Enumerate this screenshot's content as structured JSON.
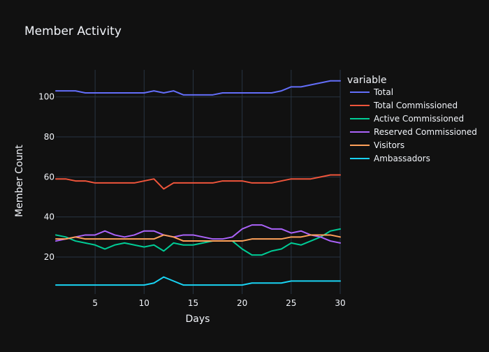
{
  "chart_data": {
    "type": "line",
    "title": "Member Activity",
    "xlabel": "Days",
    "ylabel": "Member Count",
    "legend_title": "variable",
    "legend_position": "top-right",
    "grid": true,
    "xlim": [
      1,
      30
    ],
    "ylim": [
      1.5,
      113.5
    ],
    "x_ticks": [
      5,
      10,
      15,
      20,
      25,
      30
    ],
    "y_ticks": [
      20,
      40,
      60,
      80,
      100
    ],
    "x": [
      1,
      2,
      3,
      4,
      5,
      6,
      7,
      8,
      9,
      10,
      11,
      12,
      13,
      14,
      15,
      16,
      17,
      18,
      19,
      20,
      21,
      22,
      23,
      24,
      25,
      26,
      27,
      28,
      29,
      30
    ],
    "series": [
      {
        "name": "Total",
        "color": "#636efa",
        "values": [
          103,
          103,
          103,
          102,
          102,
          102,
          102,
          102,
          102,
          102,
          103,
          102,
          103,
          101,
          101,
          101,
          101,
          102,
          102,
          102,
          102,
          102,
          102,
          103,
          105,
          105,
          106,
          107,
          108,
          108
        ]
      },
      {
        "name": "Total Commissioned",
        "color": "#ef553b",
        "values": [
          59,
          59,
          58,
          58,
          57,
          57,
          57,
          57,
          57,
          58,
          59,
          54,
          57,
          57,
          57,
          57,
          57,
          58,
          58,
          58,
          57,
          57,
          57,
          58,
          59,
          59,
          59,
          60,
          61,
          61
        ]
      },
      {
        "name": "Active Commissioned",
        "color": "#00cc96",
        "values": [
          31,
          30,
          28,
          27,
          26,
          24,
          26,
          27,
          26,
          25,
          26,
          23,
          27,
          26,
          26,
          27,
          28,
          28,
          28,
          24,
          21,
          21,
          23,
          24,
          27,
          26,
          28,
          30,
          33,
          34
        ]
      },
      {
        "name": "Reserved Commissioned",
        "color": "#ab63fa",
        "values": [
          28,
          29,
          30,
          31,
          31,
          33,
          31,
          30,
          31,
          33,
          33,
          31,
          30,
          31,
          31,
          30,
          29,
          29,
          30,
          34,
          36,
          36,
          34,
          34,
          32,
          33,
          31,
          30,
          28,
          27
        ]
      },
      {
        "name": "Visitors",
        "color": "#ffa15a",
        "values": [
          29,
          29,
          30,
          29,
          29,
          29,
          29,
          29,
          29,
          29,
          29,
          31,
          30,
          28,
          28,
          28,
          28,
          28,
          28,
          28,
          29,
          29,
          29,
          29,
          30,
          30,
          31,
          31,
          31,
          30
        ]
      },
      {
        "name": "Ambassadors",
        "color": "#19d3f3",
        "values": [
          6,
          6,
          6,
          6,
          6,
          6,
          6,
          6,
          6,
          6,
          7,
          10,
          8,
          6,
          6,
          6,
          6,
          6,
          6,
          6,
          7,
          7,
          7,
          7,
          8,
          8,
          8,
          8,
          8,
          8
        ]
      }
    ]
  }
}
